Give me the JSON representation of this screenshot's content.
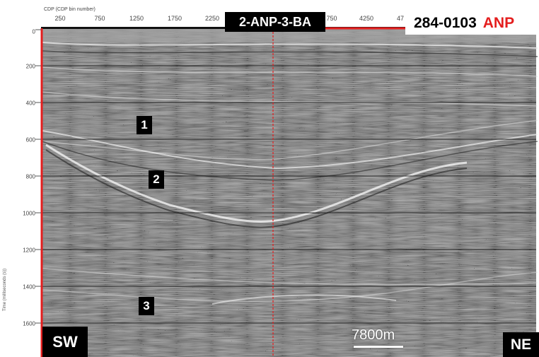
{
  "title": "2-ANP-3-BA",
  "line_id": {
    "number": "284-0103",
    "org": "ANP"
  },
  "axis": {
    "x_label": "CDP (CDP bin number)",
    "x_ticks": [
      "250",
      "750",
      "1250",
      "1750",
      "2250",
      "750",
      "4250",
      "47"
    ],
    "y_label": "Time (milliseconds (s))",
    "y_ticks": [
      "0",
      "200",
      "400",
      "600",
      "800",
      "1000",
      "1200",
      "1400",
      "1600"
    ]
  },
  "markers": {
    "m1": "1",
    "m2": "2",
    "m3": "3"
  },
  "directions": {
    "left": "SW",
    "right": "NE"
  },
  "scale": {
    "label": "7800m"
  },
  "colors": {
    "accent": "#e41e1e",
    "label_bg": "#000000",
    "label_fg": "#ffffff",
    "seismic_bg": "#8a8a8a"
  }
}
